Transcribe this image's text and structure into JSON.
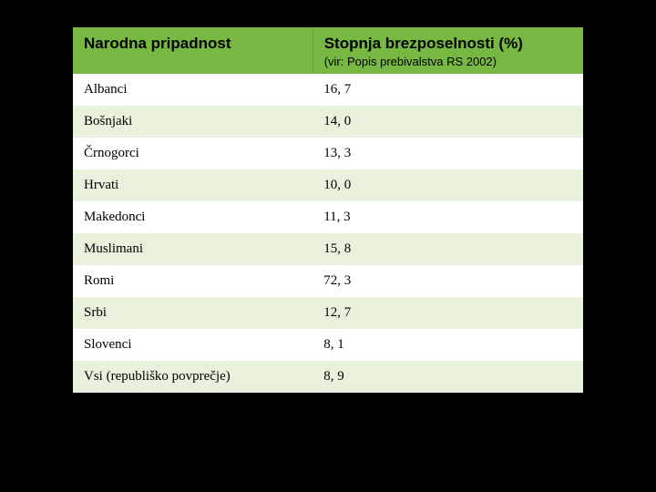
{
  "table": {
    "header": {
      "col1": "Narodna pripadnost",
      "col2": "Stopnja brezposelnosti (%)",
      "col2_sub": "(vir: Popis prebivalstva RS 2002)"
    },
    "rows": [
      {
        "label": "Albanci",
        "value": "16, 7"
      },
      {
        "label": "Bošnjaki",
        "value": "14, 0"
      },
      {
        "label": "Črnogorci",
        "value": "13, 3"
      },
      {
        "label": "Hrvati",
        "value": "10, 0"
      },
      {
        "label": "Makedonci",
        "value": "11, 3"
      },
      {
        "label": "Muslimani",
        "value": "15, 8"
      },
      {
        "label": "Romi",
        "value": "72, 3"
      },
      {
        "label": "Srbi",
        "value": "12, 7"
      },
      {
        "label": "Slovenci",
        "value": "8, 1"
      },
      {
        "label": "Vsi (republiško povprečje)",
        "value": "8, 9"
      }
    ],
    "colors": {
      "header_bg": "#77b843",
      "row_even_bg": "#e8f1dc",
      "row_odd_bg": "#ffffff",
      "page_bg": "#000000"
    }
  }
}
